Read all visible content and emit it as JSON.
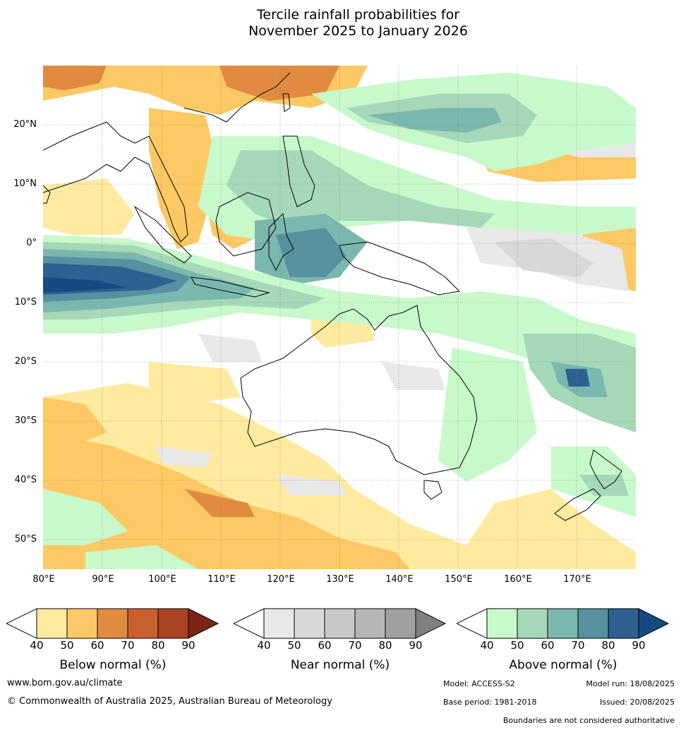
{
  "title": {
    "line1": "Tercile rainfall probabilities for",
    "line2": "November 2025 to January 2026"
  },
  "map": {
    "lat_ticks": [
      "20°N",
      "10°N",
      "0°",
      "10°S",
      "20°S",
      "30°S",
      "40°S",
      "50°S"
    ],
    "lon_ticks": [
      "80°E",
      "90°E",
      "100°E",
      "110°E",
      "120°E",
      "130°E",
      "140°E",
      "150°E",
      "160°E",
      "170°E"
    ]
  },
  "legends": [
    {
      "label": "Below normal (%)",
      "ticks": [
        "40",
        "50",
        "60",
        "70",
        "80",
        "90"
      ],
      "colors": [
        "#ffeaa0",
        "#fdc964",
        "#e18b41",
        "#c9612f",
        "#a94322",
        "#7e2414"
      ]
    },
    {
      "label": "Near normal (%)",
      "ticks": [
        "40",
        "50",
        "60",
        "70",
        "80",
        "90"
      ],
      "colors": [
        "#e8e8e8",
        "#d8d8d8",
        "#c8c8c8",
        "#b6b6b6",
        "#a0a0a0",
        "#808080"
      ]
    },
    {
      "label": "Above normal (%)",
      "ticks": [
        "40",
        "50",
        "60",
        "70",
        "80",
        "90"
      ],
      "colors": [
        "#c8f9cb",
        "#a5d8b8",
        "#7ab7ae",
        "#5791a0",
        "#2e6192",
        "#174a82"
      ]
    }
  ],
  "footer": {
    "website": "www.bom.gov.au/climate",
    "copyright": "© Commonwealth of Australia 2025, Australian Bureau of Meteorology",
    "model": "Model: ACCESS-S2",
    "base_period": "Base period: 1981-2018",
    "model_run": "Model run: 18/08/2025",
    "issued": "Issued: 20/08/2025",
    "disclaimer": "Boundaries are not considered authoritative"
  }
}
